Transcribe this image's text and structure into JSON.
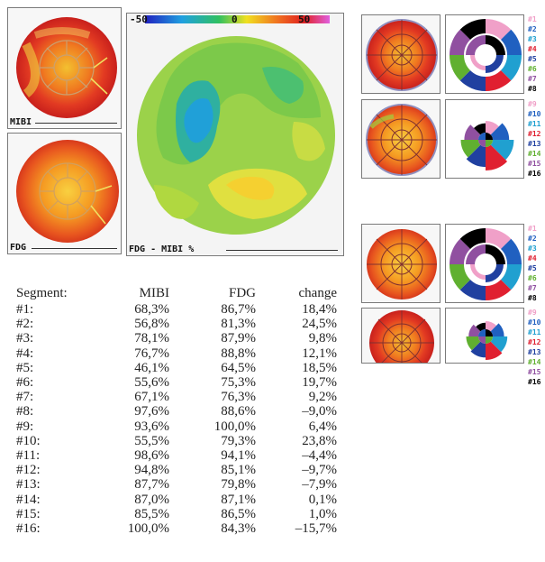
{
  "panels": {
    "mibi_label": "MIBI",
    "fdg_label": "FDG",
    "diff_label": "FDG - MIBI %",
    "scale_ticks": [
      "-50",
      "0",
      "50"
    ]
  },
  "legend_top": [
    {
      "label": "#1",
      "color": "#f0a0c8"
    },
    {
      "label": "#2",
      "color": "#2060c0"
    },
    {
      "label": "#3",
      "color": "#20a0d0"
    },
    {
      "label": "#4",
      "color": "#e02030"
    },
    {
      "label": "#5",
      "color": "#2040a0"
    },
    {
      "label": "#6",
      "color": "#60b030"
    },
    {
      "label": "#7",
      "color": "#9050a0"
    },
    {
      "label": "#8",
      "color": "#000000"
    }
  ],
  "legend_bottom": [
    {
      "label": "#9",
      "color": "#f0a0c8"
    },
    {
      "label": "#10",
      "color": "#2060c0"
    },
    {
      "label": "#11",
      "color": "#20a0d0"
    },
    {
      "label": "#12",
      "color": "#e02030"
    },
    {
      "label": "#13",
      "color": "#2040a0"
    },
    {
      "label": "#14",
      "color": "#60b030"
    },
    {
      "label": "#15",
      "color": "#9050a0"
    },
    {
      "label": "#16",
      "color": "#000000"
    }
  ],
  "table": {
    "headers": [
      "Segment:",
      "MIBI",
      "FDG",
      "change"
    ],
    "rows": [
      [
        "#1:",
        "68,3%",
        "86,7%",
        "18,4%"
      ],
      [
        "#2:",
        "56,8%",
        "81,3%",
        "24,5%"
      ],
      [
        "#3:",
        "78,1%",
        "87,9%",
        "9,8%"
      ],
      [
        "#4:",
        "76,7%",
        "88,8%",
        "12,1%"
      ],
      [
        "#5:",
        "46,1%",
        "64,5%",
        "18,5%"
      ],
      [
        "#6:",
        "55,6%",
        "75,3%",
        "19,7%"
      ],
      [
        "#7:",
        "67,1%",
        "76,3%",
        "9,2%"
      ],
      [
        "#8:",
        "97,6%",
        "88,6%",
        "–9,0%"
      ],
      [
        "#9:",
        "93,6%",
        "100,0%",
        "6,4%"
      ],
      [
        "#10:",
        "55,5%",
        "79,3%",
        "23,8%"
      ],
      [
        "#11:",
        "98,6%",
        "94,1%",
        "–4,4%"
      ],
      [
        "#12:",
        "94,8%",
        "85,1%",
        "–9,7%"
      ],
      [
        "#13:",
        "87,7%",
        "79,8%",
        "–7,9%"
      ],
      [
        "#14:",
        "87,0%",
        "87,1%",
        "0,1%"
      ],
      [
        "#15:",
        "85,5%",
        "86,5%",
        "1,0%"
      ],
      [
        "#16:",
        "100,0%",
        "84,3%",
        "–15,7%"
      ]
    ]
  }
}
